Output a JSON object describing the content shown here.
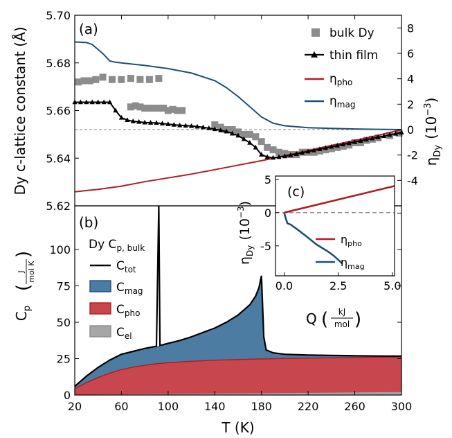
{
  "chart_data": [
    {
      "type": "scatter",
      "panel_label": "(a)",
      "ylabel": "Dy c-lattice constant  (Å)",
      "ylabel_right": "η",
      "ylabel_right_sub": "Dy",
      "ylabel_right_unit": "(10",
      "ylabel_right_exp": "−3",
      "ylabel_right_close": ")",
      "xlim": [
        20,
        300
      ],
      "ylim": [
        5.62,
        5.7
      ],
      "ylim_right": [
        -6,
        9
      ],
      "yticks": [
        "5.62",
        "5.64",
        "5.66",
        "5.68",
        "5.70"
      ],
      "yticks_right": [
        "-4",
        "-2",
        "0",
        "2",
        "4",
        "6",
        "8"
      ],
      "legend_placement": "top-right",
      "series": [
        {
          "name": "bulk Dy",
          "axis": "left",
          "color": "#8c8c8c",
          "marker": "square",
          "x": [
            23,
            28,
            33,
            38,
            44,
            52,
            60,
            68,
            76,
            84,
            92,
            68,
            72,
            76,
            80,
            84,
            88,
            92,
            96,
            100,
            104,
            108,
            112,
            140,
            145,
            150,
            155,
            160,
            165,
            170,
            175,
            180,
            185,
            190,
            195,
            200,
            205,
            210,
            215,
            220,
            225,
            230,
            235,
            240,
            245,
            250,
            255,
            260,
            265,
            270,
            275,
            280,
            290,
            298
          ],
          "y": [
            5.672,
            5.6725,
            5.6725,
            5.673,
            5.674,
            5.673,
            5.673,
            5.6735,
            5.673,
            5.673,
            5.6735,
            5.6615,
            5.662,
            5.6615,
            5.661,
            5.661,
            5.661,
            5.661,
            5.661,
            5.66,
            5.6605,
            5.66,
            5.66,
            5.654,
            5.653,
            5.652,
            5.652,
            5.651,
            5.65,
            5.65,
            5.649,
            5.647,
            5.6445,
            5.6435,
            5.6425,
            5.642,
            5.6415,
            5.6415,
            5.6425,
            5.6425,
            5.6425,
            5.643,
            5.6435,
            5.644,
            5.6445,
            5.645,
            5.6455,
            5.6465,
            5.6465,
            5.6475,
            5.648,
            5.6485,
            5.6495,
            5.6505
          ]
        },
        {
          "name": "thin film",
          "axis": "left",
          "color": "#000000",
          "marker": "triangle",
          "x": [
            20,
            30,
            40,
            50,
            55,
            60,
            65,
            70,
            80,
            90,
            100,
            110,
            120,
            130,
            140,
            150,
            160,
            170,
            175,
            180,
            185,
            190,
            200,
            210,
            220,
            230,
            240,
            250,
            260,
            270,
            280,
            290,
            300
          ],
          "y": [
            5.6635,
            5.6635,
            5.6635,
            5.6635,
            5.66,
            5.657,
            5.656,
            5.6555,
            5.655,
            5.6548,
            5.6543,
            5.6538,
            5.6535,
            5.653,
            5.6522,
            5.6512,
            5.6495,
            5.6465,
            5.6445,
            5.6415,
            5.6405,
            5.6402,
            5.6408,
            5.6418,
            5.6428,
            5.6438,
            5.6448,
            5.6458,
            5.6468,
            5.6478,
            5.6488,
            5.6498,
            5.6508
          ]
        },
        {
          "name": "η",
          "name_sub": "pho",
          "axis": "right",
          "color": "#b01c24",
          "x": [
            20,
            40,
            60,
            80,
            100,
            120,
            140,
            160,
            180,
            200,
            220,
            240,
            260,
            280,
            300
          ],
          "y": [
            -4.9,
            -4.7,
            -4.45,
            -4.1,
            -3.8,
            -3.5,
            -3.15,
            -2.8,
            -2.45,
            -2.05,
            -1.65,
            -1.25,
            -0.85,
            -0.45,
            0
          ]
        },
        {
          "name": "η",
          "name_sub": "mag",
          "axis": "right",
          "color": "#1d4e78",
          "x": [
            20,
            30,
            35,
            40,
            45,
            50,
            55,
            60,
            70,
            80,
            100,
            120,
            140,
            150,
            160,
            170,
            180,
            190,
            200,
            220,
            240,
            260,
            280,
            300
          ],
          "y": [
            6.9,
            6.85,
            6.7,
            6.3,
            5.9,
            5.4,
            5.3,
            5.25,
            5.15,
            5.05,
            4.8,
            4.45,
            3.85,
            3.3,
            2.6,
            1.8,
            1.0,
            0.5,
            0.3,
            0.15,
            0.1,
            0.05,
            0.02,
            0
          ]
        }
      ]
    },
    {
      "type": "area",
      "panel_label": "(b)",
      "ylabel": "C",
      "ylabel_sub": "p",
      "ylabel_unit_num": "J",
      "ylabel_unit_den": "mol K",
      "xlabel": "T (K)",
      "xlim": [
        20,
        300
      ],
      "ylim": [
        0,
        130
      ],
      "xticks": [
        "20",
        "60",
        "100",
        "140",
        "180",
        "220",
        "260",
        "300"
      ],
      "yticks": [
        "0",
        "25",
        "50",
        "75",
        "100"
      ],
      "legend_title": "Dy C",
      "legend_title_sub": "p, bulk",
      "legend_placement": "upper-left",
      "series": [
        {
          "name": "C",
          "name_sub": "tot",
          "color": "#000000",
          "x": [
            20,
            30,
            40,
            50,
            60,
            70,
            80,
            90,
            92,
            93,
            100,
            110,
            120,
            130,
            140,
            150,
            160,
            170,
            175,
            178,
            180,
            182,
            184,
            190,
            200,
            220,
            240,
            260,
            280,
            300
          ],
          "y": [
            6,
            13,
            19,
            24,
            28,
            30,
            32,
            33.5,
            130,
            34,
            35.5,
            37.5,
            40,
            43,
            46,
            50,
            55,
            62,
            68,
            74,
            82,
            40,
            31,
            29,
            28,
            27.5,
            27.2,
            27,
            26.8,
            26.7
          ]
        },
        {
          "name": "C",
          "name_sub": "mag",
          "color": "#4d7ca3",
          "fill_between": "C_tot",
          "x": [],
          "y": []
        },
        {
          "name": "C",
          "name_sub": "pho",
          "color": "#c8464e",
          "x": [
            20,
            30,
            40,
            50,
            60,
            70,
            80,
            90,
            100,
            120,
            140,
            160,
            180,
            200,
            220,
            240,
            260,
            280,
            300
          ],
          "y": [
            4.5,
            8.5,
            12,
            15,
            17.5,
            19.2,
            20.5,
            21.5,
            22.2,
            23.2,
            23.9,
            24.4,
            24.8,
            25.1,
            25.4,
            25.6,
            25.8,
            26,
            26.1
          ]
        },
        {
          "name": "C",
          "name_sub": "el",
          "color": "#a6a6a6",
          "x": [
            20,
            300
          ],
          "y": [
            0.2,
            2
          ]
        }
      ]
    },
    {
      "type": "line",
      "panel_label": "(c)",
      "ylabel": "η",
      "ylabel_sub": "Dy",
      "ylabel_unit": "(10",
      "ylabel_exp": "−3",
      "ylabel_close": ")",
      "xlabel": "Q",
      "xlabel_unit_num": "kJ",
      "xlabel_unit_den": "mol",
      "xlim": [
        -0.4,
        5.1
      ],
      "ylim": [
        -9.5,
        5.5
      ],
      "xticks": [
        "0.0",
        "2.5",
        "5.0"
      ],
      "yticks": [
        "-5",
        "0",
        "5"
      ],
      "legend_placement": "lower-right",
      "series": [
        {
          "name": "η",
          "name_sub": "pho",
          "color": "#b01c24",
          "x": [
            0,
            5.1
          ],
          "y": [
            0,
            4.0
          ]
        },
        {
          "name": "η",
          "name_sub": "mag",
          "color": "#1d4e78",
          "x": [
            0,
            0.05,
            0.15,
            0.3,
            0.6,
            1.0,
            1.5,
            2.0,
            2.3,
            2.6,
            2.7
          ],
          "y": [
            0,
            -0.6,
            -1.6,
            -1.8,
            -2.5,
            -3.5,
            -4.8,
            -5.8,
            -6.5,
            -7.4,
            -7.7
          ]
        }
      ]
    }
  ]
}
